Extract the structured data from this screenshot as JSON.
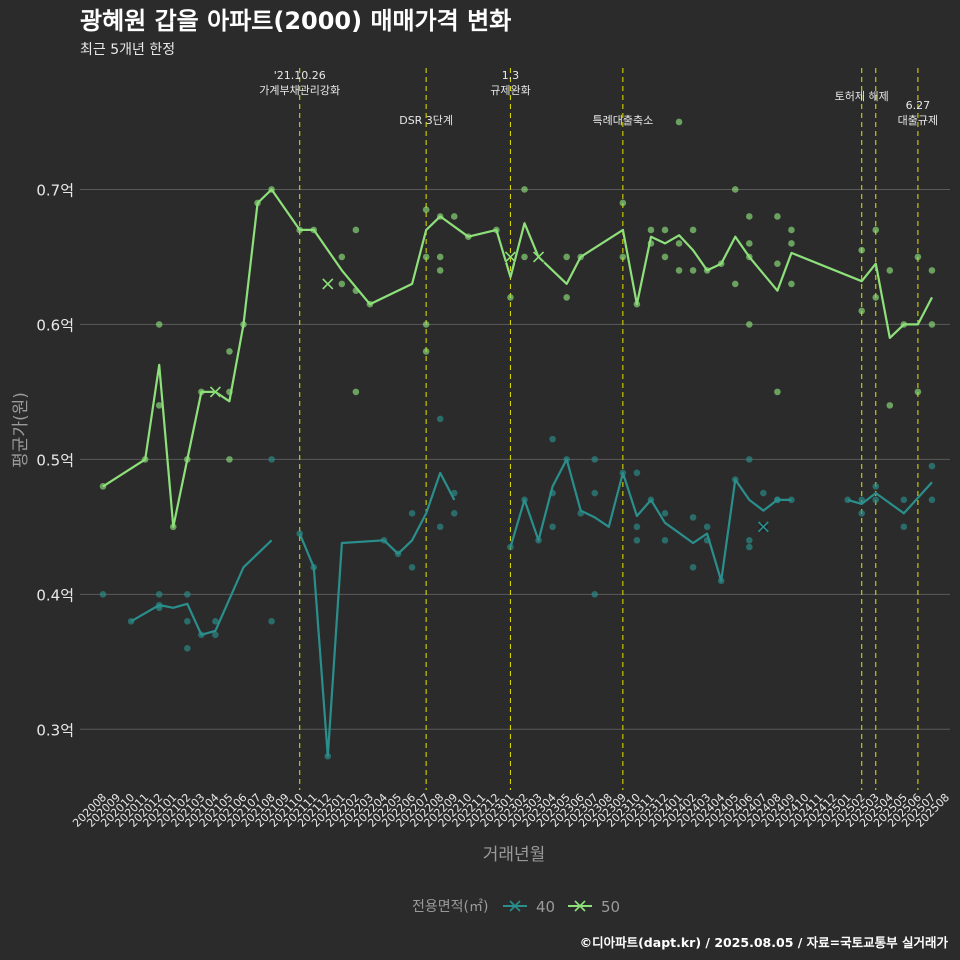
{
  "header": {
    "title": "광혜원 갑을 아파트(2000) 매매가격 변화",
    "subtitle": "최근 5개년 한정"
  },
  "footer": {
    "credit": "©디아파트(dapt.kr) / 2025.08.05 / 자료=국토교통부 실거래가"
  },
  "colors": {
    "background": "#2b2b2b",
    "grid": "#5a5a5a",
    "series_40": "#2a8f8c",
    "series_50": "#8ee07a",
    "event_line": "#d4d400",
    "text": "#e8e8e8",
    "axis_label": "#9a9a9a"
  },
  "chart_data": {
    "type": "line",
    "title": "광혜원 갑을 아파트(2000) 매매가격 변화",
    "subtitle": "최근 5개년 한정",
    "xlabel": "거래년월",
    "ylabel": "평균가(원)",
    "ylim": [
      0.255,
      0.79
    ],
    "yticks": [
      {
        "value": 0.3,
        "label": "0.3억"
      },
      {
        "value": 0.4,
        "label": "0.4억"
      },
      {
        "value": 0.5,
        "label": "0.5억"
      },
      {
        "value": 0.6,
        "label": "0.6억"
      },
      {
        "value": 0.7,
        "label": "0.7억"
      }
    ],
    "grid": true,
    "legend": {
      "title": "전용면적(㎡)",
      "position": "bottom",
      "entries": [
        "40",
        "50"
      ]
    },
    "x_categories": [
      "202008",
      "202009",
      "202010",
      "202011",
      "202012",
      "202101",
      "202102",
      "202103",
      "202104",
      "202105",
      "202106",
      "202107",
      "202108",
      "202109",
      "202110",
      "202111",
      "202112",
      "202201",
      "202202",
      "202203",
      "202204",
      "202205",
      "202206",
      "202207",
      "202208",
      "202209",
      "202210",
      "202211",
      "202212",
      "202301",
      "202302",
      "202303",
      "202304",
      "202305",
      "202306",
      "202307",
      "202308",
      "202309",
      "202310",
      "202311",
      "202312",
      "202401",
      "202402",
      "202403",
      "202404",
      "202405",
      "202406",
      "202407",
      "202408",
      "202409",
      "202410",
      "202411",
      "202412",
      "202501",
      "202502",
      "202503",
      "202504",
      "202505",
      "202506",
      "202507",
      "202508"
    ],
    "events": [
      {
        "x": 14,
        "label_lines": [
          "'21.10.26",
          "가계부채관리강화"
        ],
        "label_row": 0
      },
      {
        "x": 23,
        "label_lines": [
          "DSR 3단계"
        ],
        "label_row": 1
      },
      {
        "x": 29,
        "label_lines": [
          "1.3",
          "규제완화"
        ],
        "label_row": 0
      },
      {
        "x": 37,
        "label_lines": [
          "특례대출축소"
        ],
        "label_row": 1
      },
      {
        "x": 54,
        "label_lines": [
          "토허제 해제"
        ],
        "label_row": 0
      },
      {
        "x": 55,
        "label_lines": [],
        "label_row": 0
      },
      {
        "x": 58,
        "label_lines": [
          "6.27",
          "대출규제"
        ],
        "label_row": 1
      }
    ],
    "series": [
      {
        "name": "40",
        "color": "#2a8f8c",
        "line": [
          [
            [
              0,
              0.4
            ]
          ],
          [
            [
              2,
              0.38
            ],
            [
              4,
              0.392
            ],
            [
              5,
              0.39
            ],
            [
              6,
              0.393
            ],
            [
              7,
              0.37
            ],
            [
              8,
              0.373
            ],
            [
              10,
              0.42
            ],
            [
              12,
              0.44
            ]
          ],
          [
            [
              14,
              0.445
            ],
            [
              15,
              0.42
            ],
            [
              16,
              0.28
            ],
            [
              17,
              0.438
            ],
            [
              20,
              0.44
            ],
            [
              21,
              0.43
            ],
            [
              22,
              0.44
            ],
            [
              23,
              0.46
            ],
            [
              24,
              0.49
            ],
            [
              25,
              0.47
            ]
          ],
          [
            [
              29,
              0.435
            ],
            [
              30,
              0.47
            ],
            [
              31,
              0.44
            ],
            [
              32,
              0.48
            ],
            [
              33,
              0.5
            ],
            [
              34,
              0.462
            ],
            [
              35,
              0.457
            ],
            [
              36,
              0.45
            ],
            [
              37,
              0.49
            ],
            [
              38,
              0.458
            ],
            [
              39,
              0.47
            ],
            [
              40,
              0.453
            ],
            [
              42,
              0.438
            ],
            [
              43,
              0.445
            ],
            [
              44,
              0.41
            ],
            [
              45,
              0.485
            ],
            [
              46,
              0.47
            ],
            [
              47,
              0.462
            ],
            [
              48,
              0.47
            ],
            [
              49,
              0.47
            ]
          ],
          [
            [
              53,
              0.47
            ],
            [
              54,
              0.467
            ],
            [
              55,
              0.475
            ],
            [
              57,
              0.46
            ],
            [
              59,
              0.483
            ]
          ]
        ],
        "points": [
          [
            0,
            0.4
          ],
          [
            2,
            0.38
          ],
          [
            4,
            0.39
          ],
          [
            4,
            0.4
          ],
          [
            4,
            0.392
          ],
          [
            6,
            0.4
          ],
          [
            6,
            0.38
          ],
          [
            6,
            0.36
          ],
          [
            7,
            0.37
          ],
          [
            8,
            0.38
          ],
          [
            8,
            0.37
          ],
          [
            12,
            0.38
          ],
          [
            12,
            0.5
          ],
          [
            14,
            0.445
          ],
          [
            15,
            0.42
          ],
          [
            16,
            0.28
          ],
          [
            20,
            0.44
          ],
          [
            21,
            0.43
          ],
          [
            22,
            0.46
          ],
          [
            22,
            0.42
          ],
          [
            24,
            0.53
          ],
          [
            24,
            0.45
          ],
          [
            25,
            0.475
          ],
          [
            25,
            0.46
          ],
          [
            29,
            0.435
          ],
          [
            30,
            0.47
          ],
          [
            31,
            0.44
          ],
          [
            32,
            0.515
          ],
          [
            32,
            0.475
          ],
          [
            32,
            0.45
          ],
          [
            33,
            0.5
          ],
          [
            34,
            0.46
          ],
          [
            35,
            0.475
          ],
          [
            35,
            0.5
          ],
          [
            35,
            0.4
          ],
          [
            37,
            0.49
          ],
          [
            38,
            0.45
          ],
          [
            38,
            0.44
          ],
          [
            38,
            0.49
          ],
          [
            39,
            0.47
          ],
          [
            40,
            0.44
          ],
          [
            40,
            0.46
          ],
          [
            42,
            0.42
          ],
          [
            42,
            0.457
          ],
          [
            43,
            0.45
          ],
          [
            43,
            0.44
          ],
          [
            44,
            0.41
          ],
          [
            45,
            0.485
          ],
          [
            46,
            0.5
          ],
          [
            46,
            0.44
          ],
          [
            46,
            0.435
          ],
          [
            47,
            0.475
          ],
          [
            48,
            0.47
          ],
          [
            48,
            0.47
          ],
          [
            49,
            0.47
          ],
          [
            53,
            0.47
          ],
          [
            54,
            0.46
          ],
          [
            54,
            0.47
          ],
          [
            55,
            0.48
          ],
          [
            55,
            0.47
          ],
          [
            57,
            0.47
          ],
          [
            57,
            0.45
          ],
          [
            59,
            0.495
          ],
          [
            59,
            0.47
          ]
        ],
        "crosses": [
          [
            47,
            0.45
          ]
        ]
      },
      {
        "name": "50",
        "color": "#8ee07a",
        "line": [
          [
            [
              0,
              0.48
            ],
            [
              3,
              0.5
            ],
            [
              4,
              0.57
            ],
            [
              5,
              0.45
            ],
            [
              6,
              0.5
            ],
            [
              7,
              0.55
            ],
            [
              8,
              0.55
            ],
            [
              9,
              0.543
            ],
            [
              10,
              0.6
            ],
            [
              11,
              0.69
            ],
            [
              12,
              0.7
            ],
            [
              14,
              0.67
            ],
            [
              15,
              0.67
            ],
            [
              17,
              0.64
            ],
            [
              19,
              0.615
            ],
            [
              22,
              0.63
            ],
            [
              23,
              0.67
            ],
            [
              24,
              0.68
            ],
            [
              26,
              0.665
            ],
            [
              28,
              0.67
            ],
            [
              29,
              0.635
            ],
            [
              30,
              0.675
            ],
            [
              31,
              0.65
            ],
            [
              33,
              0.63
            ],
            [
              34,
              0.65
            ],
            [
              37,
              0.67
            ],
            [
              38,
              0.615
            ],
            [
              39,
              0.665
            ],
            [
              40,
              0.66
            ],
            [
              41,
              0.666
            ],
            [
              42,
              0.655
            ],
            [
              43,
              0.64
            ],
            [
              44,
              0.645
            ],
            [
              45,
              0.665
            ],
            [
              46,
              0.65
            ],
            [
              48,
              0.625
            ],
            [
              49,
              0.653
            ],
            [
              54,
              0.632
            ],
            [
              55,
              0.645
            ],
            [
              56,
              0.59
            ],
            [
              57,
              0.6
            ],
            [
              58,
              0.6
            ],
            [
              59,
              0.62
            ]
          ]
        ],
        "points": [
          [
            0,
            0.48
          ],
          [
            3,
            0.5
          ],
          [
            4,
            0.6
          ],
          [
            4,
            0.54
          ],
          [
            5,
            0.45
          ],
          [
            6,
            0.5
          ],
          [
            7,
            0.55
          ],
          [
            9,
            0.55
          ],
          [
            9,
            0.58
          ],
          [
            9,
            0.5
          ],
          [
            10,
            0.6
          ],
          [
            11,
            0.69
          ],
          [
            12,
            0.7
          ],
          [
            14,
            0.67
          ],
          [
            15,
            0.67
          ],
          [
            17,
            0.65
          ],
          [
            17,
            0.63
          ],
          [
            18,
            0.67
          ],
          [
            18,
            0.625
          ],
          [
            18,
            0.55
          ],
          [
            19,
            0.615
          ],
          [
            23,
            0.685
          ],
          [
            23,
            0.65
          ],
          [
            23,
            0.6
          ],
          [
            23,
            0.58
          ],
          [
            24,
            0.68
          ],
          [
            24,
            0.65
          ],
          [
            24,
            0.64
          ],
          [
            25,
            0.68
          ],
          [
            26,
            0.665
          ],
          [
            28,
            0.67
          ],
          [
            29,
            0.62
          ],
          [
            30,
            0.7
          ],
          [
            30,
            0.65
          ],
          [
            33,
            0.65
          ],
          [
            33,
            0.62
          ],
          [
            34,
            0.65
          ],
          [
            37,
            0.69
          ],
          [
            37,
            0.65
          ],
          [
            38,
            0.615
          ],
          [
            39,
            0.67
          ],
          [
            39,
            0.66
          ],
          [
            40,
            0.67
          ],
          [
            40,
            0.65
          ],
          [
            41,
            0.75
          ],
          [
            41,
            0.66
          ],
          [
            41,
            0.64
          ],
          [
            42,
            0.67
          ],
          [
            42,
            0.64
          ],
          [
            43,
            0.64
          ],
          [
            44,
            0.645
          ],
          [
            45,
            0.7
          ],
          [
            45,
            0.63
          ],
          [
            46,
            0.68
          ],
          [
            46,
            0.66
          ],
          [
            46,
            0.65
          ],
          [
            46,
            0.6
          ],
          [
            48,
            0.68
          ],
          [
            48,
            0.645
          ],
          [
            48,
            0.55
          ],
          [
            49,
            0.67
          ],
          [
            49,
            0.66
          ],
          [
            49,
            0.63
          ],
          [
            54,
            0.655
          ],
          [
            54,
            0.61
          ],
          [
            55,
            0.67
          ],
          [
            55,
            0.62
          ],
          [
            56,
            0.64
          ],
          [
            56,
            0.54
          ],
          [
            57,
            0.6
          ],
          [
            58,
            0.65
          ],
          [
            58,
            0.55
          ],
          [
            59,
            0.64
          ],
          [
            59,
            0.6
          ]
        ],
        "crosses": [
          [
            8,
            0.55
          ],
          [
            16,
            0.63
          ],
          [
            29,
            0.65
          ],
          [
            31,
            0.65
          ]
        ]
      }
    ]
  }
}
